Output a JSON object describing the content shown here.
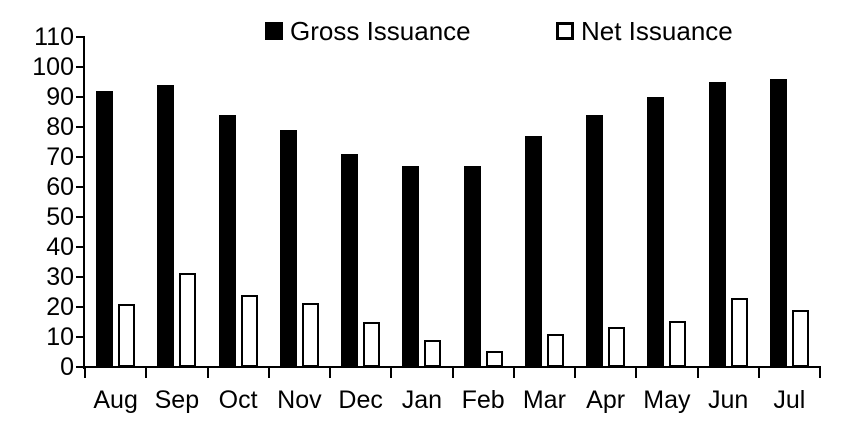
{
  "chart_data": {
    "type": "bar",
    "title": "",
    "categories": [
      "Aug",
      "Sep",
      "Oct",
      "Nov",
      "Dec",
      "Jan",
      "Feb",
      "Mar",
      "Apr",
      "May",
      "Jun",
      "Jul"
    ],
    "series": [
      {
        "name": "Gross Issuance",
        "swatch": "filled-black-square",
        "fill": "#000000",
        "stroke": "#000000",
        "values": [
          92,
          94,
          84,
          79,
          71,
          67,
          67,
          77,
          84,
          90,
          95,
          96
        ]
      },
      {
        "name": "Net Issuance",
        "swatch": "outlined-white-square",
        "fill": "#ffffff",
        "stroke": "#000000",
        "values": [
          21,
          31.5,
          24,
          21.5,
          15,
          9,
          5.5,
          11,
          13.5,
          15.5,
          23,
          19
        ]
      }
    ],
    "xlabel": "",
    "ylabel": "",
    "ylim": [
      0,
      110
    ],
    "ytick_step": 10,
    "yticks": [
      0,
      10,
      20,
      30,
      40,
      50,
      60,
      70,
      80,
      90,
      100,
      110
    ],
    "legend_position": "top",
    "grid": false,
    "axis_color": "#000000",
    "background": "#ffffff"
  }
}
